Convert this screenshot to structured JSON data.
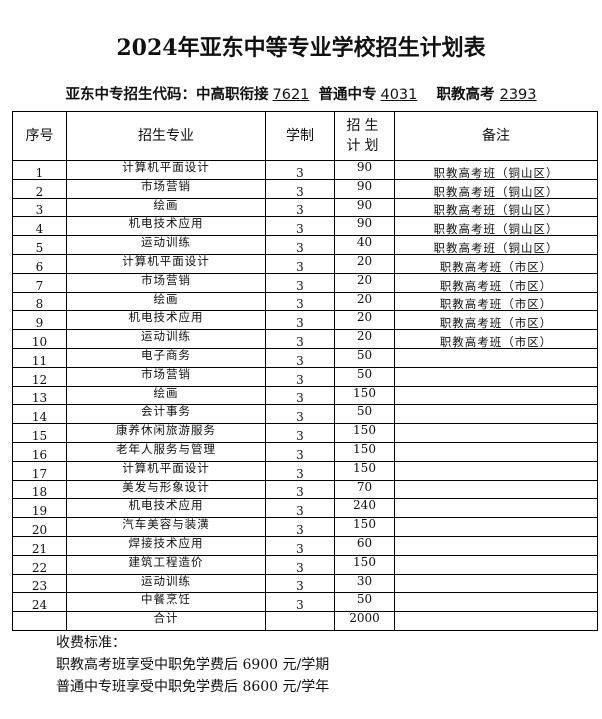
{
  "title": "2024年亚东中等专业学校招生计划表",
  "codes": {
    "label": "亚东中专招生代码：",
    "c1_label": "中高职衔接",
    "c1": "7621",
    "c2_label": "普通中专",
    "c2": "4031",
    "c3_label": "职教高考",
    "c3": "2393"
  },
  "table": {
    "headers": [
      "序号",
      "招生专业",
      "学制",
      "招生计划",
      "备注"
    ],
    "rows": [
      [
        "1",
        "计算机平面设计",
        "3",
        "90",
        "职教高考班（铜山区）"
      ],
      [
        "2",
        "市场营销",
        "3",
        "90",
        "职教高考班（铜山区）"
      ],
      [
        "3",
        "绘画",
        "3",
        "90",
        "职教高考班（铜山区）"
      ],
      [
        "4",
        "机电技术应用",
        "3",
        "90",
        "职教高考班（铜山区）"
      ],
      [
        "5",
        "运动训练",
        "3",
        "40",
        "职教高考班（铜山区）"
      ],
      [
        "6",
        "计算机平面设计",
        "3",
        "20",
        "职教高考班（市区）"
      ],
      [
        "7",
        "市场营销",
        "3",
        "20",
        "职教高考班（市区）"
      ],
      [
        "8",
        "绘画",
        "3",
        "20",
        "职教高考班（市区）"
      ],
      [
        "9",
        "机电技术应用",
        "3",
        "20",
        "职教高考班（市区）"
      ],
      [
        "10",
        "运动训练",
        "3",
        "20",
        "职教高考班（市区）"
      ],
      [
        "11",
        "电子商务",
        "3",
        "50",
        ""
      ],
      [
        "12",
        "市场营销",
        "3",
        "50",
        ""
      ],
      [
        "13",
        "绘画",
        "3",
        "150",
        ""
      ],
      [
        "14",
        "会计事务",
        "3",
        "50",
        ""
      ],
      [
        "15",
        "康养休闲旅游服务",
        "3",
        "150",
        ""
      ],
      [
        "16",
        "老年人服务与管理",
        "3",
        "150",
        ""
      ],
      [
        "17",
        "计算机平面设计",
        "3",
        "150",
        ""
      ],
      [
        "18",
        "美发与形象设计",
        "3",
        "70",
        ""
      ],
      [
        "19",
        "机电技术应用",
        "3",
        "240",
        ""
      ],
      [
        "20",
        "汽车美容与装潢",
        "3",
        "150",
        ""
      ],
      [
        "21",
        "焊接技术应用",
        "3",
        "60",
        ""
      ],
      [
        "22",
        "建筑工程造价",
        "3",
        "150",
        ""
      ],
      [
        "23",
        "运动训练",
        "3",
        "30",
        ""
      ],
      [
        "24",
        "中餐烹饪",
        "3",
        "50",
        ""
      ]
    ],
    "total": {
      "label": "合计",
      "value": "2000"
    }
  },
  "fees": {
    "heading": "收费标准：",
    "line1": "职教高考班享受中职免学费后 6900 元/学期",
    "line2": "普通中专班享受中职免学费后 8600 元/学年"
  }
}
